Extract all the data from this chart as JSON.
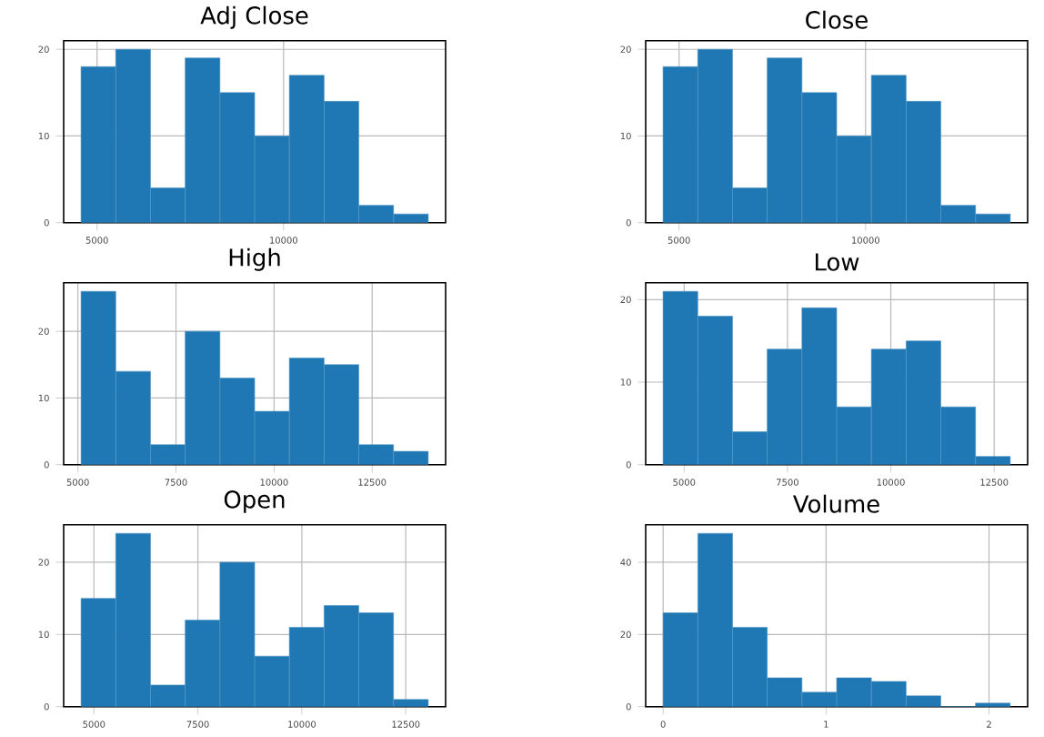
{
  "chart_data": [
    {
      "type": "histogram",
      "title": "Adj Close",
      "bins": [
        4570,
        5501,
        6432,
        7363,
        8294,
        9225,
        10156,
        11087,
        12018,
        12949,
        13880
      ],
      "values": [
        18,
        20,
        4,
        19,
        15,
        10,
        17,
        14,
        2,
        1
      ],
      "color": "#1f77b4",
      "xlim": [
        4105,
        14345
      ],
      "ylim": [
        0,
        21
      ],
      "xticks": [
        5000,
        10000
      ],
      "yticks": [
        0,
        10,
        20
      ],
      "grid": true
    },
    {
      "type": "histogram",
      "title": "Close",
      "bins": [
        4570,
        5501,
        6432,
        7363,
        8294,
        9225,
        10156,
        11087,
        12018,
        12949,
        13880
      ],
      "values": [
        18,
        20,
        4,
        19,
        15,
        10,
        17,
        14,
        2,
        1
      ],
      "color": "#1f77b4",
      "xlim": [
        4105,
        14345
      ],
      "ylim": [
        0,
        21
      ],
      "xticks": [
        5000,
        10000
      ],
      "yticks": [
        0,
        10,
        20
      ],
      "grid": true
    },
    {
      "type": "histogram",
      "title": "High",
      "bins": [
        5080,
        5965,
        6850,
        7735,
        8620,
        9505,
        10390,
        11275,
        12160,
        13045,
        13930
      ],
      "values": [
        26,
        14,
        3,
        20,
        13,
        8,
        16,
        15,
        3,
        2
      ],
      "color": "#1f77b4",
      "xlim": [
        4637,
        14373
      ],
      "ylim": [
        0,
        27.3
      ],
      "xticks": [
        5000,
        7500,
        10000,
        12500
      ],
      "yticks": [
        0,
        10,
        20
      ],
      "grid": true
    },
    {
      "type": "histogram",
      "title": "Low",
      "bins": [
        4490,
        5330,
        6170,
        7010,
        7850,
        8690,
        9530,
        10370,
        11210,
        12050,
        12890
      ],
      "values": [
        21,
        18,
        4,
        14,
        19,
        7,
        14,
        15,
        7,
        1
      ],
      "color": "#1f77b4",
      "xlim": [
        4070,
        13310
      ],
      "ylim": [
        0,
        22.05
      ],
      "xticks": [
        5000,
        7500,
        10000,
        12500
      ],
      "yticks": [
        0,
        10,
        20
      ],
      "grid": true
    },
    {
      "type": "histogram",
      "title": "Open",
      "bins": [
        4690,
        5525,
        6360,
        7195,
        8030,
        8865,
        9700,
        10535,
        11370,
        12205,
        13040
      ],
      "values": [
        15,
        24,
        3,
        12,
        20,
        7,
        11,
        14,
        13,
        1
      ],
      "color": "#1f77b4",
      "xlim": [
        4272,
        13458
      ],
      "ylim": [
        0,
        25.2
      ],
      "xticks": [
        5000,
        7500,
        10000,
        12500
      ],
      "yticks": [
        0,
        10,
        20
      ],
      "grid": true
    },
    {
      "type": "histogram",
      "title": "Volume",
      "bins": [
        0,
        0.213,
        0.426,
        0.639,
        0.852,
        1.065,
        1.278,
        1.491,
        1.704,
        1.917,
        2.13
      ],
      "values": [
        26,
        48,
        22,
        8,
        4,
        8,
        7,
        3,
        0,
        1
      ],
      "color": "#1f77b4",
      "xlim": [
        -0.107,
        2.237
      ],
      "ylim": [
        0,
        50.4
      ],
      "xticks": [
        0,
        1,
        2
      ],
      "yticks": [
        0,
        20,
        40
      ],
      "grid": true
    }
  ]
}
